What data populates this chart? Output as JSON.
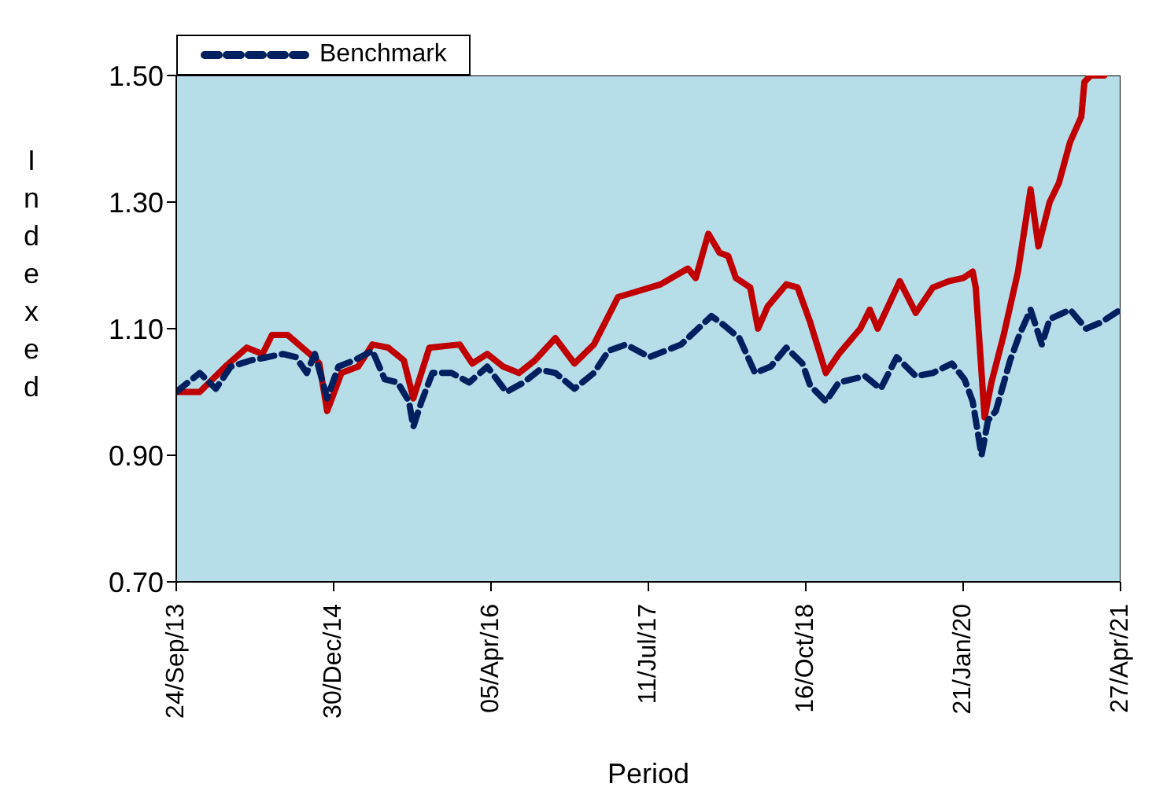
{
  "chart_data": {
    "type": "line",
    "xlabel": "Period",
    "ylabel": "Indexed",
    "grid": false,
    "legend": "top left",
    "marker": "none",
    "xlim": [
      "2013-09-24",
      "2021-04-27"
    ],
    "xticks": [
      {
        "value": "2013-09-24",
        "label": "24/Sep/13"
      },
      {
        "value": "2014-12-30",
        "label": "30/Dec/14"
      },
      {
        "value": "2016-04-05",
        "label": "05/Apr/16"
      },
      {
        "value": "2017-07-11",
        "label": "11/Jul/17"
      },
      {
        "value": "2018-10-16",
        "label": "16/Oct/18"
      },
      {
        "value": "2020-01-21",
        "label": "21/Jan/20"
      },
      {
        "value": "2021-04-27",
        "label": "27/Apr/21"
      }
    ],
    "ylim": [
      0.7,
      1.5
    ],
    "yticks": [
      {
        "value": 0.7,
        "label": "0.70"
      },
      {
        "value": 0.9,
        "label": "0.90"
      },
      {
        "value": 1.1,
        "label": "1.10"
      },
      {
        "value": 1.3,
        "label": "1.30"
      },
      {
        "value": 1.5,
        "label": "1.50"
      }
    ],
    "series": [
      {
        "color": "#c00000",
        "line_style": "solid",
        "x": [
          "2013-09-24",
          "2013-12-02",
          "2014-02-15",
          "2014-04-19",
          "2014-06-04",
          "2014-07-02",
          "2014-08-17",
          "2014-10-21",
          "2014-11-18",
          "2014-12-11",
          "2015-01-22",
          "2015-03-12",
          "2015-04-23",
          "2015-06-08",
          "2015-07-24",
          "2015-08-21",
          "2015-10-07",
          "2016-01-04",
          "2016-02-10",
          "2016-03-25",
          "2016-05-11",
          "2016-06-26",
          "2016-08-12",
          "2016-10-11",
          "2016-12-06",
          "2017-02-01",
          "2017-04-13",
          "2017-05-15",
          "2017-08-16",
          "2017-11-04",
          "2017-11-27",
          "2018-01-03",
          "2018-02-05",
          "2018-03-02",
          "2018-03-25",
          "2018-05-06",
          "2018-05-29",
          "2018-06-26",
          "2018-08-20",
          "2018-09-22",
          "2018-10-29",
          "2018-12-14",
          "2019-01-21",
          "2019-03-25",
          "2019-04-22",
          "2019-05-15",
          "2019-07-19",
          "2019-09-04",
          "2019-10-24",
          "2019-12-10",
          "2020-01-21",
          "2020-02-18",
          "2020-02-27",
          "2020-03-24",
          "2020-04-13",
          "2020-05-19",
          "2020-06-30",
          "2020-08-06",
          "2020-08-29",
          "2020-10-01",
          "2020-10-28",
          "2020-11-30",
          "2021-01-02",
          "2021-01-11",
          "2021-01-30",
          "2021-03-10"
        ],
        "values": [
          1.0,
          1.0,
          1.04,
          1.07,
          1.06,
          1.09,
          1.09,
          1.06,
          1.045,
          0.97,
          1.03,
          1.04,
          1.075,
          1.07,
          1.05,
          0.99,
          1.07,
          1.075,
          1.045,
          1.06,
          1.04,
          1.03,
          1.05,
          1.085,
          1.045,
          1.075,
          1.15,
          1.155,
          1.17,
          1.195,
          1.18,
          1.25,
          1.22,
          1.215,
          1.18,
          1.165,
          1.1,
          1.135,
          1.17,
          1.165,
          1.11,
          1.03,
          1.06,
          1.1,
          1.13,
          1.1,
          1.175,
          1.125,
          1.165,
          1.175,
          1.18,
          1.19,
          1.165,
          0.96,
          1.015,
          1.09,
          1.19,
          1.32,
          1.23,
          1.3,
          1.33,
          1.395,
          1.435,
          1.49,
          1.5,
          1.5
        ]
      },
      {
        "name": "Benchmark",
        "color": "#002060",
        "line_style": "dashed",
        "x": [
          "2013-09-24",
          "2013-12-02",
          "2014-01-18",
          "2014-03-03",
          "2014-05-02",
          "2014-06-18",
          "2014-08-03",
          "2014-09-10",
          "2014-10-12",
          "2014-11-05",
          "2014-12-11",
          "2015-01-13",
          "2015-02-28",
          "2015-04-23",
          "2015-05-29",
          "2015-07-06",
          "2015-08-08",
          "2015-08-21",
          "2015-09-14",
          "2015-10-16",
          "2015-12-11",
          "2016-02-01",
          "2016-03-25",
          "2016-05-20",
          "2016-07-10",
          "2016-08-26",
          "2016-10-11",
          "2016-12-06",
          "2017-02-01",
          "2017-03-16",
          "2017-05-06",
          "2017-07-14",
          "2017-10-15",
          "2018-01-12",
          "2018-02-19",
          "2018-04-04",
          "2018-05-20",
          "2018-07-05",
          "2018-08-20",
          "2018-10-06",
          "2018-10-29",
          "2018-12-14",
          "2019-01-21",
          "2019-04-08",
          "2019-05-24",
          "2019-07-10",
          "2019-09-04",
          "2019-10-24",
          "2019-12-19",
          "2020-01-25",
          "2020-02-18",
          "2020-03-15",
          "2020-04-03",
          "2020-04-26",
          "2020-06-07",
          "2020-07-04",
          "2020-08-06",
          "2020-09-08",
          "2020-10-01",
          "2020-11-30",
          "2021-01-16",
          "2021-03-01",
          "2021-04-27"
        ],
        "values": [
          1.0,
          1.03,
          1.005,
          1.04,
          1.05,
          1.055,
          1.06,
          1.055,
          1.03,
          1.06,
          0.99,
          1.04,
          1.05,
          1.065,
          1.02,
          1.015,
          0.985,
          0.945,
          0.985,
          1.03,
          1.03,
          1.015,
          1.04,
          1.0,
          1.015,
          1.035,
          1.03,
          1.005,
          1.03,
          1.065,
          1.075,
          1.055,
          1.075,
          1.12,
          1.105,
          1.085,
          1.03,
          1.04,
          1.07,
          1.045,
          1.01,
          0.985,
          1.015,
          1.025,
          1.005,
          1.055,
          1.025,
          1.03,
          1.045,
          1.02,
          0.985,
          0.9,
          0.955,
          0.97,
          1.05,
          1.09,
          1.13,
          1.075,
          1.115,
          1.13,
          1.1,
          1.11,
          1.13
        ]
      }
    ]
  }
}
